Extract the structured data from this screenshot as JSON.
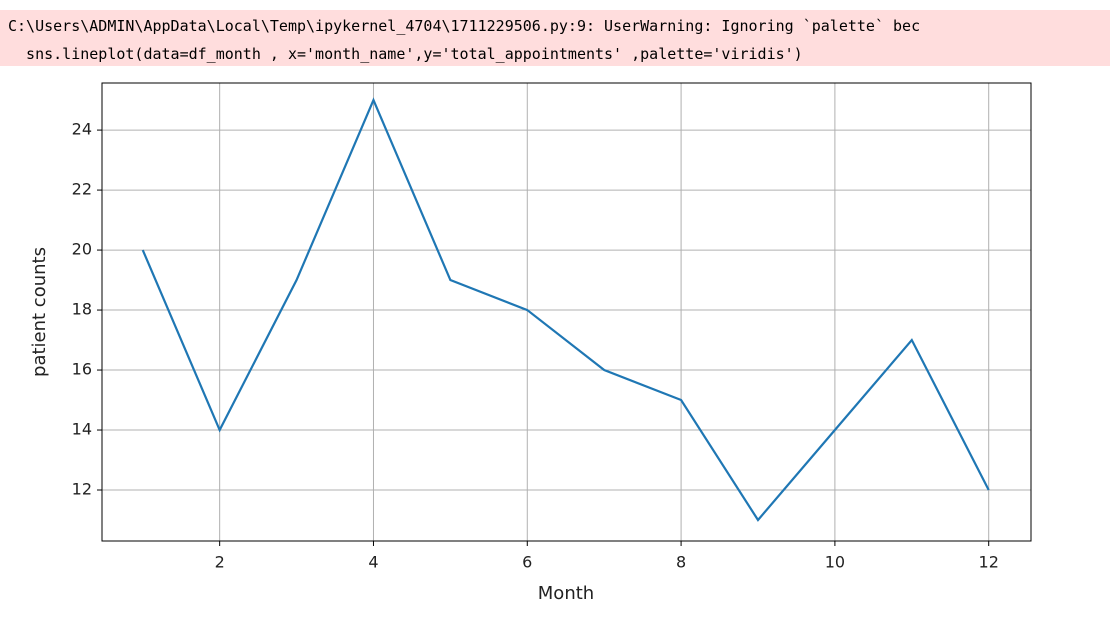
{
  "warning": {
    "lines": [
      "C:\\Users\\ADMIN\\AppData\\Local\\Temp\\ipykernel_4704\\1711229506.py:9: UserWarning: Ignoring `palette` bec",
      "  sns.lineplot(data=df_month , x='month_name',y='total_appointments' ,palette='viridis')"
    ]
  },
  "chart_data": {
    "type": "line",
    "x_label": "Month",
    "y_label": "patient counts",
    "x": [
      1,
      2,
      3,
      4,
      5,
      6,
      7,
      8,
      9,
      10,
      11,
      12
    ],
    "values": [
      20,
      14,
      19,
      25,
      19,
      18,
      16,
      15,
      11,
      14,
      17,
      12
    ],
    "color": "#1f77b4",
    "xlim": [
      0.47,
      12.55
    ],
    "xticks": [
      2,
      4,
      6,
      8,
      10,
      12
    ],
    "ylim": [
      10.3,
      25.57
    ],
    "yticks": [
      12,
      14,
      16,
      18,
      20,
      22,
      24
    ],
    "grid": true
  }
}
